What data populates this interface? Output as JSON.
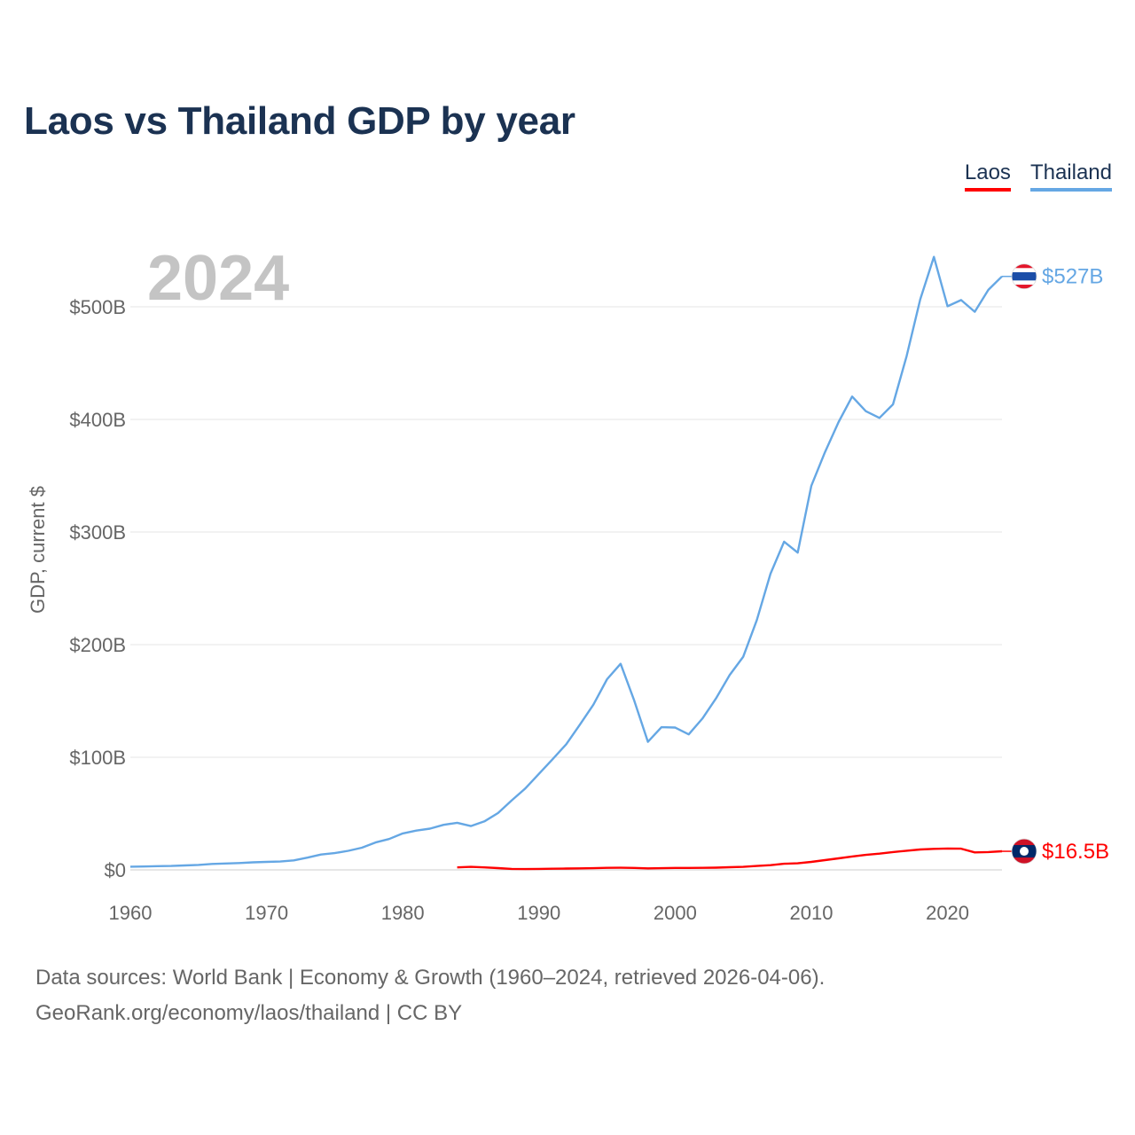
{
  "title": "Laos vs Thailand GDP by year",
  "legend": {
    "laos": "Laos",
    "thailand": "Thailand"
  },
  "year_label": "2024",
  "source_line1": "Data sources: World Bank | Economy & Growth (1960–2024, retrieved 2026-04-06).",
  "source_line2": "GeoRank.org/economy/laos/thailand | CC BY",
  "colors": {
    "laos": "#ff0000",
    "thailand": "#65a7e4",
    "grid": "#e6e6e6",
    "axis_text": "#666666",
    "title": "#1b3252",
    "year": "#c4c4c4"
  },
  "chart_data": {
    "type": "line",
    "title": "Laos vs Thailand GDP by year",
    "xlabel": "",
    "ylabel": "GDP, current $",
    "xlim": [
      1960,
      2024
    ],
    "ylim": [
      0,
      550
    ],
    "unit": "billion USD",
    "x_ticks": [
      1960,
      1970,
      1980,
      1990,
      2000,
      2010,
      2020
    ],
    "y_ticks": [
      0,
      100,
      200,
      300,
      400,
      500
    ],
    "y_tick_labels": [
      "$0",
      "$100B",
      "$200B",
      "$300B",
      "$400B",
      "$500B"
    ],
    "series": [
      {
        "name": "Thailand",
        "end_label": "$527B",
        "x": [
          1960,
          1961,
          1962,
          1963,
          1964,
          1965,
          1966,
          1967,
          1968,
          1969,
          1970,
          1971,
          1972,
          1973,
          1974,
          1975,
          1976,
          1977,
          1978,
          1979,
          1980,
          1981,
          1982,
          1983,
          1984,
          1985,
          1986,
          1987,
          1988,
          1989,
          1990,
          1991,
          1992,
          1993,
          1994,
          1995,
          1996,
          1997,
          1998,
          1999,
          2000,
          2001,
          2002,
          2003,
          2004,
          2005,
          2006,
          2007,
          2008,
          2009,
          2010,
          2011,
          2012,
          2013,
          2014,
          2015,
          2016,
          2017,
          2018,
          2019,
          2020,
          2021,
          2022,
          2023,
          2024
        ],
        "values": [
          2.8,
          3.0,
          3.3,
          3.5,
          3.9,
          4.4,
          5.3,
          5.7,
          6.1,
          6.7,
          7.1,
          7.4,
          8.4,
          10.9,
          13.6,
          14.9,
          16.9,
          19.7,
          24.3,
          27.4,
          32.4,
          34.9,
          36.6,
          40.0,
          41.8,
          38.9,
          43.1,
          50.5,
          61.7,
          72.3,
          85.3,
          98.2,
          111.5,
          128.9,
          146.7,
          169.3,
          183.0,
          150.2,
          113.7,
          126.7,
          126.4,
          120.3,
          134.3,
          152.3,
          172.9,
          189.3,
          221.8,
          262.9,
          291.4,
          281.7,
          341.1,
          370.8,
          397.6,
          420.3,
          407.3,
          401.3,
          413.4,
          456.4,
          506.6,
          544.3,
          500.5,
          506.0,
          495.6,
          515.0,
          527.0
        ]
      },
      {
        "name": "Laos",
        "end_label": "$16.5B",
        "x": [
          1984,
          1985,
          1986,
          1987,
          1988,
          1989,
          1990,
          1991,
          1992,
          1993,
          1994,
          1995,
          1996,
          1997,
          1998,
          1999,
          2000,
          2001,
          2002,
          2003,
          2004,
          2005,
          2006,
          2007,
          2008,
          2009,
          2010,
          2011,
          2012,
          2013,
          2014,
          2015,
          2016,
          2017,
          2018,
          2019,
          2020,
          2021,
          2022,
          2023,
          2024
        ],
        "values": [
          2.2,
          2.7,
          2.2,
          1.6,
          0.9,
          0.7,
          0.9,
          1.0,
          1.2,
          1.3,
          1.5,
          1.8,
          1.9,
          1.7,
          1.3,
          1.5,
          1.7,
          1.7,
          1.8,
          2.0,
          2.4,
          2.7,
          3.5,
          4.2,
          5.4,
          5.8,
          7.1,
          8.7,
          10.2,
          11.9,
          13.3,
          14.4,
          15.8,
          17.0,
          18.1,
          18.7,
          19.0,
          18.8,
          15.5,
          15.8,
          16.5
        ]
      }
    ]
  }
}
